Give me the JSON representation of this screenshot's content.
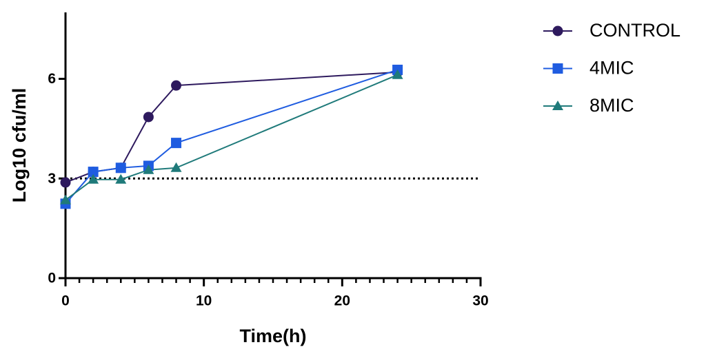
{
  "chart_data": {
    "type": "line",
    "x_label": "Time(h)",
    "y_label": "Log10 cfu/ml",
    "xlim": [
      0,
      30
    ],
    "xticks": [
      0,
      10,
      20,
      30
    ],
    "xminorticks": [
      1,
      2,
      3,
      4,
      5,
      6,
      7,
      8,
      9,
      11,
      12,
      13,
      14,
      15,
      16,
      17,
      18,
      19,
      21,
      22,
      23,
      24,
      25,
      26,
      27,
      28,
      29
    ],
    "ylim": [
      0,
      8
    ],
    "yticks": [
      0,
      3,
      6
    ],
    "reference_line": 3,
    "legend": "right",
    "series": [
      {
        "name": "CONTROL",
        "color": "#2e1a5e",
        "marker": "circle",
        "x": [
          0,
          2,
          4,
          6,
          8,
          24
        ],
        "values": [
          2.88,
          3.2,
          3.32,
          4.85,
          5.8,
          6.2
        ]
      },
      {
        "name": "4MIC",
        "color": "#1f5ce0",
        "marker": "square",
        "x": [
          0,
          2,
          4,
          6,
          8,
          24
        ],
        "values": [
          2.24,
          3.2,
          3.32,
          3.38,
          4.07,
          6.27
        ]
      },
      {
        "name": "8MIC",
        "color": "#1f7a7a",
        "marker": "triangle",
        "x": [
          0,
          2,
          4,
          6,
          8,
          24
        ],
        "values": [
          2.35,
          2.97,
          2.97,
          3.26,
          3.32,
          6.12
        ]
      }
    ]
  }
}
